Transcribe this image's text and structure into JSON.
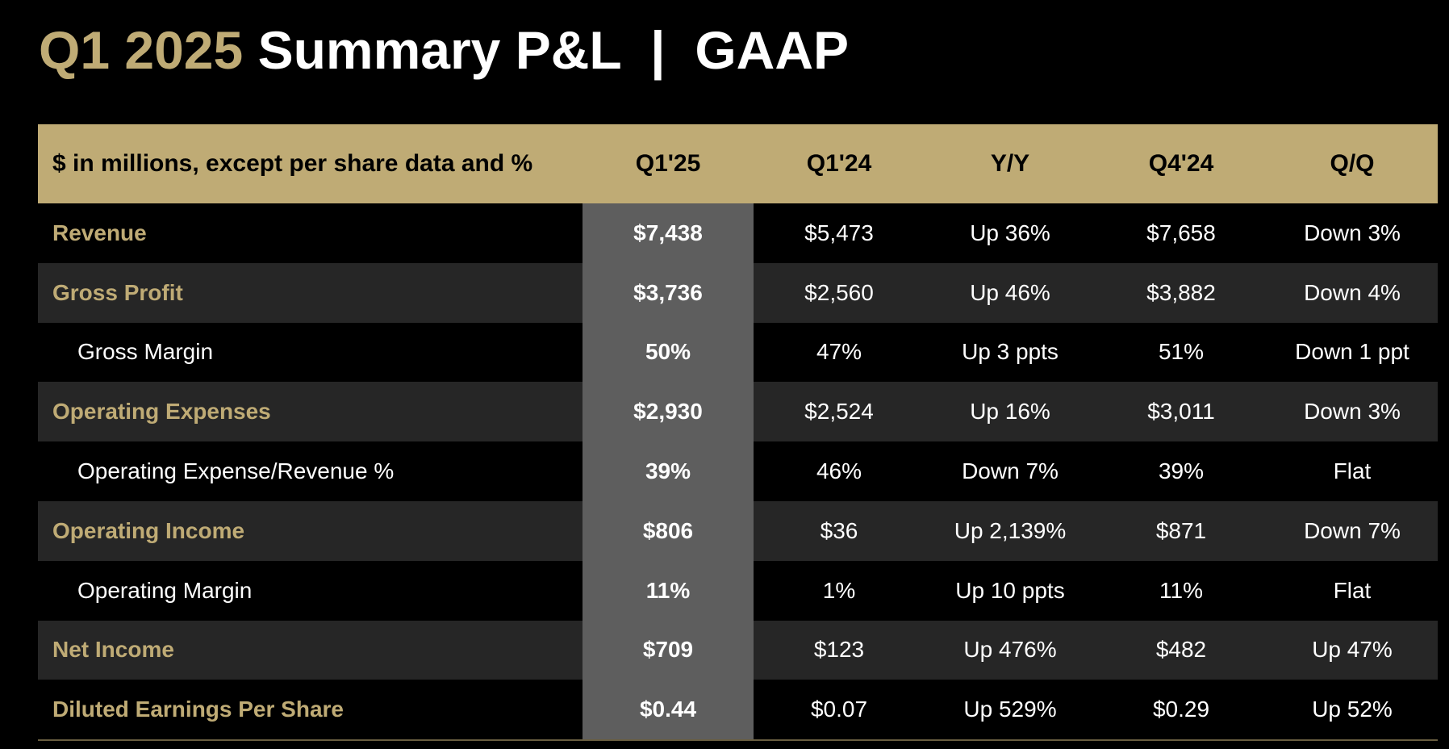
{
  "title": {
    "accent": "Q1 2025",
    "main": "Summary P&L  |  GAAP"
  },
  "colors": {
    "accent": "#bfab75",
    "background": "#000000",
    "row_dark": "#262626",
    "highlight_column": "#5e5e5e",
    "text": "#ffffff"
  },
  "table": {
    "headers": [
      "$ in millions, except per share data and %",
      "Q1'25",
      "Q1'24",
      "Y/Y",
      "Q4'24",
      "Q/Q"
    ],
    "rows": [
      {
        "label": "Revenue",
        "values": [
          "$7,438",
          "$5,473",
          "Up 36%",
          "$7,658",
          "Down 3%"
        ]
      },
      {
        "label": "Gross Profit",
        "values": [
          "$3,736",
          "$2,560",
          "Up 46%",
          "$3,882",
          "Down 4%"
        ]
      },
      {
        "label": "Gross Margin",
        "values": [
          "50%",
          "47%",
          "Up 3 ppts",
          "51%",
          "Down 1 ppt"
        ]
      },
      {
        "label": "Operating Expenses",
        "values": [
          "$2,930",
          "$2,524",
          "Up 16%",
          "$3,011",
          "Down 3%"
        ]
      },
      {
        "label": "Operating Expense/Revenue %",
        "values": [
          "39%",
          "46%",
          "Down 7%",
          "39%",
          "Flat"
        ]
      },
      {
        "label": "Operating Income",
        "values": [
          "$806",
          "$36",
          "Up 2,139%",
          "$871",
          "Down 7%"
        ]
      },
      {
        "label": "Operating Margin",
        "values": [
          "11%",
          "1%",
          "Up 10 ppts",
          "11%",
          "Flat"
        ]
      },
      {
        "label": "Net Income",
        "values": [
          "$709",
          "$123",
          "Up 476%",
          "$482",
          "Up 47%"
        ]
      },
      {
        "label": "Diluted Earnings Per Share",
        "values": [
          "$0.44",
          "$0.07",
          "Up 529%",
          "$0.29",
          "Up 52%"
        ]
      }
    ]
  }
}
